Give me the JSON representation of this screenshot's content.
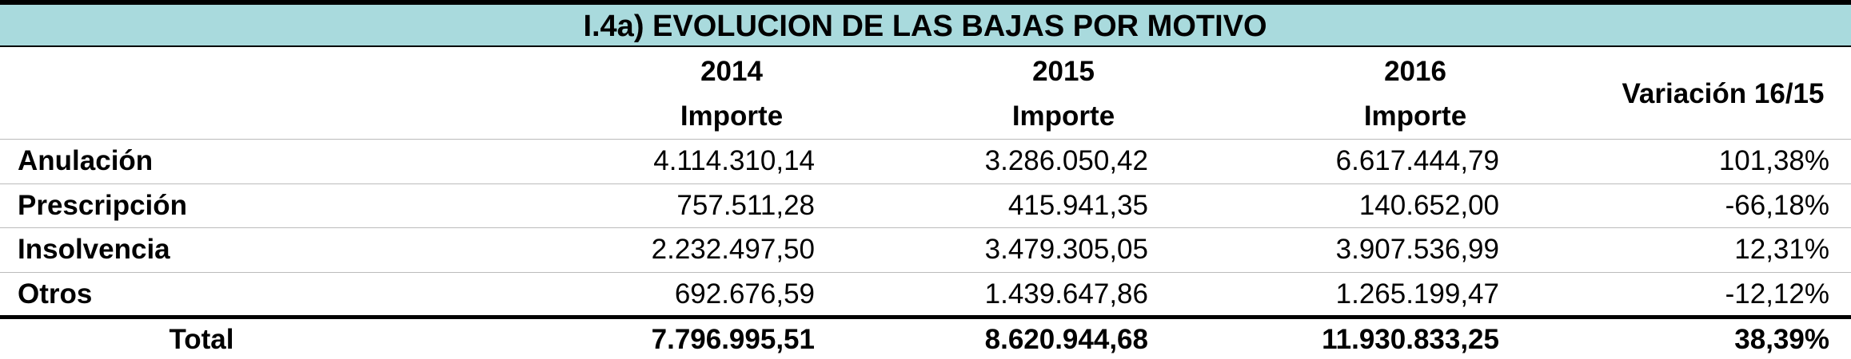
{
  "title": "I.4a) EVOLUCION DE LAS BAJAS POR MOTIVO",
  "header": {
    "years": [
      "2014",
      "2015",
      "2016"
    ],
    "subheaders": [
      "Importe",
      "Importe",
      "Importe"
    ],
    "variation": "Variación 16/15"
  },
  "rows": [
    {
      "label": "Anulación",
      "values": [
        "4.114.310,14",
        "3.286.050,42",
        "6.617.444,79",
        "101,38%"
      ]
    },
    {
      "label": "Prescripción",
      "values": [
        "757.511,28",
        "415.941,35",
        "140.652,00",
        "-66,18%"
      ]
    },
    {
      "label": "Insolvencia",
      "values": [
        "2.232.497,50",
        "3.479.305,05",
        "3.907.536,99",
        "12,31%"
      ]
    },
    {
      "label": "Otros",
      "values": [
        "692.676,59",
        "1.439.647,86",
        "1.265.199,47",
        "-12,12%"
      ]
    }
  ],
  "total": {
    "label": "Total",
    "values": [
      "7.796.995,51",
      "8.620.944,68",
      "11.930.833,25",
      "38,39%"
    ]
  }
}
